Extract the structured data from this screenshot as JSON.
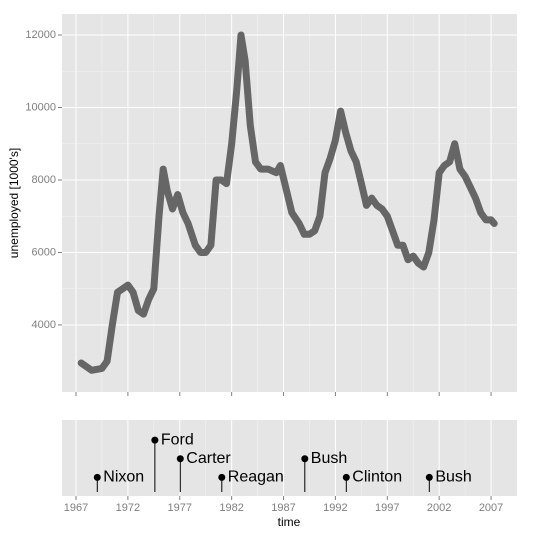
{
  "chart_data": [
    {
      "type": "line",
      "ylabel": "unemployed [1000's]",
      "x": [
        1967.5,
        1968.0,
        1968.5,
        1969.5,
        1970.0,
        1970.5,
        1971.0,
        1971.5,
        1972.0,
        1972.5,
        1973.0,
        1973.5,
        1974.0,
        1974.5,
        1975.0,
        1975.4,
        1975.8,
        1976.3,
        1976.8,
        1977.3,
        1977.8,
        1978.5,
        1979.0,
        1979.5,
        1980.0,
        1980.5,
        1981.0,
        1981.5,
        1982.0,
        1982.5,
        1982.9,
        1983.3,
        1983.8,
        1984.3,
        1984.8,
        1985.5,
        1986.3,
        1986.7,
        1987.3,
        1987.8,
        1988.5,
        1989.0,
        1989.5,
        1990.0,
        1990.5,
        1991.0,
        1991.5,
        1992.0,
        1992.5,
        1993.0,
        1993.5,
        1994.0,
        1994.5,
        1995.0,
        1995.5,
        1996.0,
        1996.5,
        1997.0,
        1997.5,
        1998.0,
        1998.5,
        1999.0,
        1999.5,
        2000.0,
        2000.5,
        2001.0,
        2001.5,
        2002.0,
        2002.5,
        2003.0,
        2003.5,
        2004.0,
        2004.5,
        2005.0,
        2005.5,
        2006.0,
        2006.5,
        2007.0,
        2007.3
      ],
      "values": [
        2950,
        2850,
        2750,
        2800,
        3000,
        4000,
        4900,
        5000,
        5100,
        4900,
        4400,
        4300,
        4700,
        5000,
        7000,
        8300,
        7700,
        7200,
        7600,
        7100,
        6800,
        6200,
        6000,
        6000,
        6200,
        8000,
        8000,
        7900,
        9000,
        10500,
        12000,
        11300,
        9500,
        8500,
        8300,
        8300,
        8200,
        8400,
        7700,
        7100,
        6800,
        6500,
        6500,
        6600,
        7000,
        8200,
        8600,
        9100,
        9900,
        9300,
        8800,
        8500,
        7900,
        7300,
        7500,
        7300,
        7200,
        7000,
        6600,
        6200,
        6200,
        5800,
        5900,
        5700,
        5600,
        6000,
        6900,
        8200,
        8400,
        8500,
        9000,
        8300,
        8100,
        7800,
        7500,
        7100,
        6900,
        6900,
        6800
      ],
      "color": "#666666",
      "xlim": [
        1965.65,
        2009.5
      ],
      "xticks": [
        1967,
        1972,
        1977,
        1982,
        1987,
        1992,
        1997,
        2002,
        2007
      ],
      "ylim": [
        2150,
        12580
      ],
      "yticks": [
        4000,
        6000,
        8000,
        10000,
        12000
      ],
      "grid": true
    },
    {
      "type": "timeline",
      "xlabel": "time",
      "categories": [
        "Nixon",
        "Ford",
        "Carter",
        "Reagan",
        "Bush",
        "Clinton",
        "Bush"
      ],
      "x": [
        1969.05,
        1974.6,
        1977.05,
        1981.05,
        1989.05,
        1993.05,
        2001.05
      ],
      "values": [
        1,
        3,
        2,
        1,
        2,
        1,
        1
      ],
      "color": "#000000",
      "xlim": [
        1965.65,
        2009.5
      ],
      "xticks": [
        1967,
        1972,
        1977,
        1982,
        1987,
        1992,
        1997,
        2002,
        2007
      ],
      "ylim": [
        0,
        4.08
      ],
      "grid": true
    }
  ]
}
